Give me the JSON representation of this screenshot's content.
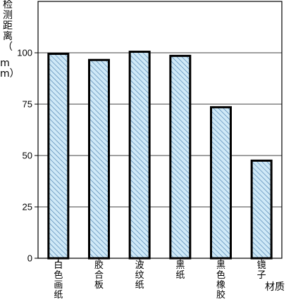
{
  "chart_data": {
    "type": "bar",
    "ylabel": "检测距离（mm）",
    "xlabel": "材质",
    "categories": [
      "白色画纸",
      "胶合板",
      "波纹纸",
      "黑纸",
      "黑色橡胶",
      "镜子"
    ],
    "values": [
      99.5,
      96.5,
      100.5,
      98.5,
      73.5,
      47.5
    ],
    "ylim": [
      0,
      125
    ],
    "yticks": [
      0,
      25,
      50,
      75,
      100
    ],
    "grid": true,
    "bar_pattern": "diagonal-hatch",
    "colors": {
      "bar_fill": "#cfe9f7",
      "hatch": "#4a7fb0",
      "outline": "#000000"
    }
  },
  "ylabel_parts": {
    "a": "检测距离（",
    "b": "mm）"
  }
}
